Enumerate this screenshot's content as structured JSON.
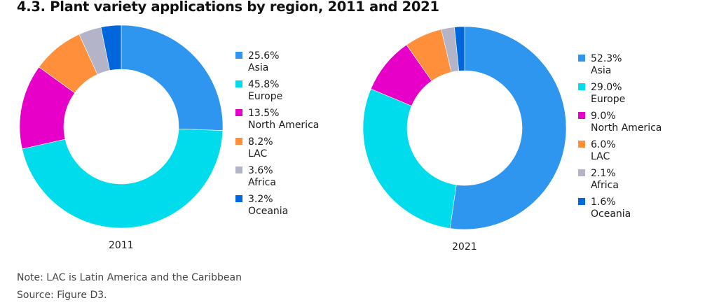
{
  "title": "4.3. Plant variety applications by region, 2011 and 2021",
  "note": "Note: LAC is Latin America and the Caribbean",
  "source": "Source: Figure D3.",
  "chart_data": [
    {
      "type": "pie",
      "variant": "donut",
      "label": "2011",
      "start": "12 o'clock",
      "direction": "clockwise",
      "categories": [
        "Asia",
        "Europe",
        "North America",
        "LAC",
        "Africa",
        "Oceania"
      ],
      "values": [
        25.6,
        45.8,
        13.5,
        8.2,
        3.6,
        3.2
      ],
      "value_labels": [
        "25.6%",
        "45.8%",
        "13.5%",
        "8.2%",
        "3.6%",
        "3.2%"
      ],
      "colors": [
        "#2e96ee",
        "#00dcec",
        "#e600c8",
        "#ff8f3a",
        "#b4b4c8",
        "#0066dc"
      ],
      "legend": "right"
    },
    {
      "type": "pie",
      "variant": "donut",
      "label": "2021",
      "start": "12 o'clock",
      "direction": "clockwise",
      "categories": [
        "Asia",
        "Europe",
        "North America",
        "LAC",
        "Africa",
        "Oceania"
      ],
      "values": [
        52.3,
        29.0,
        9.0,
        6.0,
        2.1,
        1.6
      ],
      "value_labels": [
        "52.3%",
        "29.0%",
        "9.0%",
        "6.0%",
        "2.1%",
        "1.6%"
      ],
      "colors": [
        "#2e96ee",
        "#00dcec",
        "#e600c8",
        "#ff8f3a",
        "#b4b4c8",
        "#0066dc"
      ],
      "legend": "right"
    }
  ]
}
